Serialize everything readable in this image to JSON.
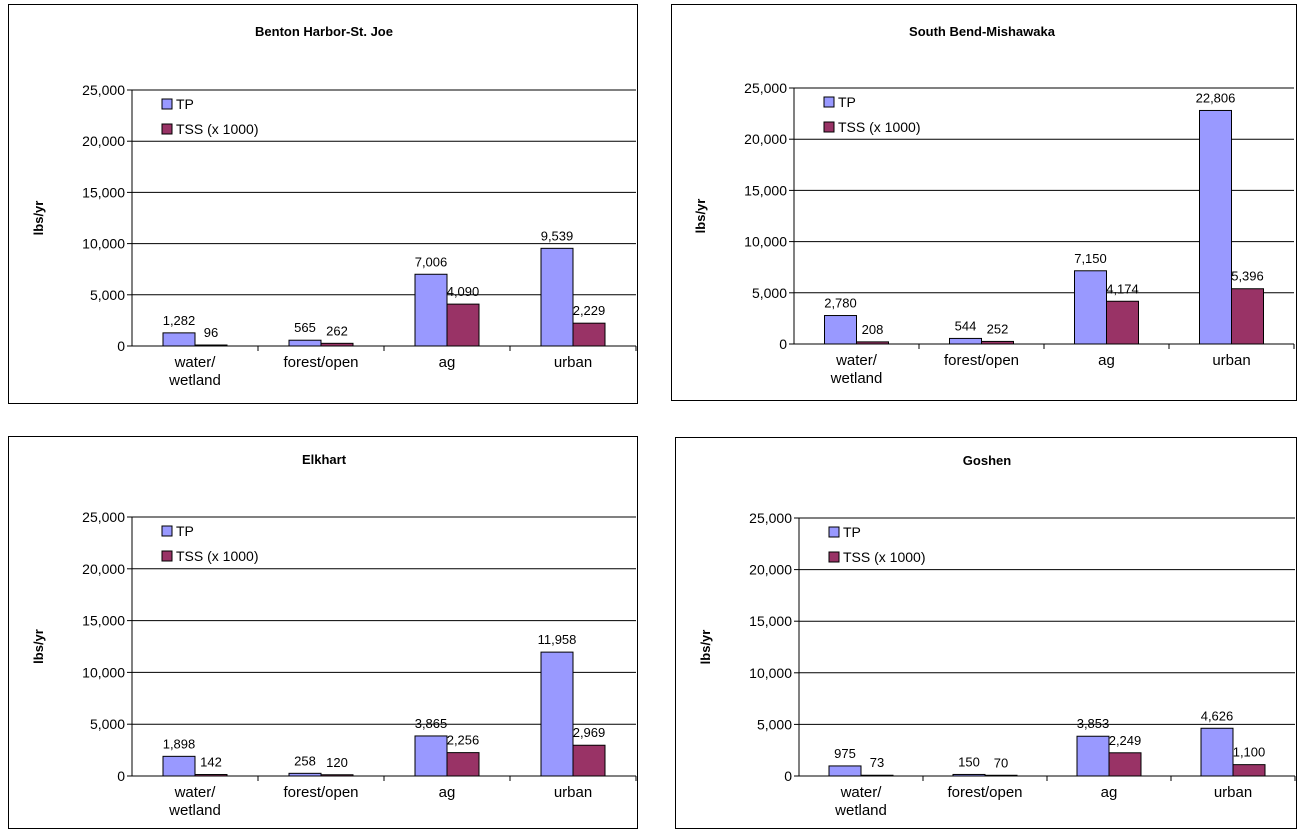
{
  "chart_data": [
    {
      "type": "bar",
      "title": "Benton Harbor-St. Joe",
      "ylabel": "lbs/yr",
      "ylim": [
        0,
        25000
      ],
      "yticks": [
        "0",
        "5,000",
        "10,000",
        "15,000",
        "20,000",
        "25,000"
      ],
      "categories": [
        [
          "water/",
          "wetland"
        ],
        [
          "forest/open"
        ],
        [
          "ag"
        ],
        [
          "urban"
        ]
      ],
      "series": [
        {
          "name": "TP",
          "values": [
            1282,
            565,
            7006,
            9539
          ],
          "labels": [
            "1,282",
            "565",
            "7,006",
            "9,539"
          ]
        },
        {
          "name": "TSS (x 1000)",
          "values": [
            96,
            262,
            4090,
            2229
          ],
          "labels": [
            "96",
            "262",
            "4,090",
            "2,229"
          ]
        }
      ],
      "grid": true,
      "legend": "top-left"
    },
    {
      "type": "bar",
      "title": "South Bend-Mishawaka",
      "ylabel": "lbs/yr",
      "ylim": [
        0,
        25000
      ],
      "yticks": [
        "0",
        "5,000",
        "10,000",
        "15,000",
        "20,000",
        "25,000"
      ],
      "categories": [
        [
          "water/",
          "wetland"
        ],
        [
          "forest/open"
        ],
        [
          "ag"
        ],
        [
          "urban"
        ]
      ],
      "series": [
        {
          "name": "TP",
          "values": [
            2780,
            544,
            7150,
            22806
          ],
          "labels": [
            "2,780",
            "544",
            "7,150",
            "22,806"
          ]
        },
        {
          "name": "TSS (x 1000)",
          "values": [
            208,
            252,
            4174,
            5396
          ],
          "labels": [
            "208",
            "252",
            "4,174",
            "5,396"
          ]
        }
      ],
      "grid": true,
      "legend": "top-left"
    },
    {
      "type": "bar",
      "title": "Elkhart",
      "ylabel": "lbs/yr",
      "ylim": [
        0,
        25000
      ],
      "yticks": [
        "0",
        "5,000",
        "10,000",
        "15,000",
        "20,000",
        "25,000"
      ],
      "categories": [
        [
          "water/",
          "wetland"
        ],
        [
          "forest/open"
        ],
        [
          "ag"
        ],
        [
          "urban"
        ]
      ],
      "series": [
        {
          "name": "TP",
          "values": [
            1898,
            258,
            3865,
            11958
          ],
          "labels": [
            "1,898",
            "258",
            "3,865",
            "11,958"
          ]
        },
        {
          "name": "TSS (x 1000)",
          "values": [
            142,
            120,
            2256,
            2969
          ],
          "labels": [
            "142",
            "120",
            "2,256",
            "2,969"
          ]
        }
      ],
      "grid": true,
      "legend": "top-left"
    },
    {
      "type": "bar",
      "title": "Goshen",
      "ylabel": "lbs/yr",
      "ylim": [
        0,
        25000
      ],
      "yticks": [
        "0",
        "5,000",
        "10,000",
        "15,000",
        "20,000",
        "25,000"
      ],
      "categories": [
        [
          "water/",
          "wetland"
        ],
        [
          "forest/open"
        ],
        [
          "ag"
        ],
        [
          "urban"
        ]
      ],
      "series": [
        {
          "name": "TP",
          "values": [
            975,
            150,
            3853,
            4626
          ],
          "labels": [
            "975",
            "150",
            "3,853",
            "4,626"
          ]
        },
        {
          "name": "TSS (x 1000)",
          "values": [
            73,
            70,
            2249,
            1100
          ],
          "labels": [
            "73",
            "70",
            "2,249",
            "1,100"
          ]
        }
      ],
      "grid": true,
      "legend": "top-left"
    }
  ],
  "colors": {
    "tp": "#9999ff",
    "tss": "#993366",
    "gridline": "#000000",
    "border": "#000000"
  }
}
